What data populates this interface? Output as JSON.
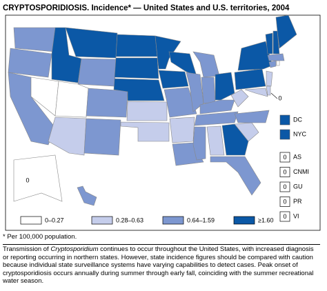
{
  "title": "CRYPTOSPORIDIOSIS. Incidence* — United States and U.S. territories, 2004",
  "legend": [
    {
      "label": "0–0.27",
      "color": "#ffffff"
    },
    {
      "label": "0.28–0.63",
      "color": "#c5cdeb"
    },
    {
      "label": "0.64–1.59",
      "color": "#7d97d0"
    },
    {
      "label": "≥1.60",
      "color": "#0b58a6"
    }
  ],
  "map": {
    "state_classes": [
      2,
      2,
      2,
      0,
      3,
      3,
      2,
      0,
      1,
      2,
      2,
      3,
      3,
      3,
      1,
      1,
      3,
      3,
      2,
      1,
      2,
      3,
      2,
      2,
      2,
      3,
      2,
      2,
      1,
      2,
      3,
      1,
      2,
      2,
      1,
      3,
      3,
      1,
      1,
      1,
      2,
      0,
      2,
      3,
      3,
      3,
      0,
      2
    ],
    "zero_labels": [
      "0",
      "0"
    ]
  },
  "insets": [
    {
      "label": "DC",
      "class": 3
    },
    {
      "label": "NYC",
      "class": 3
    }
  ],
  "territories": [
    {
      "label": "AS",
      "value": "0"
    },
    {
      "label": "CNMI",
      "value": "0"
    },
    {
      "label": "GU",
      "value": "0"
    },
    {
      "label": "PR",
      "value": "0"
    },
    {
      "label": "VI",
      "value": "0"
    }
  ],
  "footnote": "* Per 100,000 population.",
  "caption": {
    "before": "Transmission of ",
    "italic": "Cryptosporidium",
    "after": " continues to occur throughout the United States, with increased diagnosis or reporting occurring in northern states. However, state incidence figures should be compared with caution because individual state surveillance systems have varying capabilities to detect cases. Peak onset of cryptosporidiosis occurs annually during summer through early fall, coinciding with the summer recreational water season."
  }
}
